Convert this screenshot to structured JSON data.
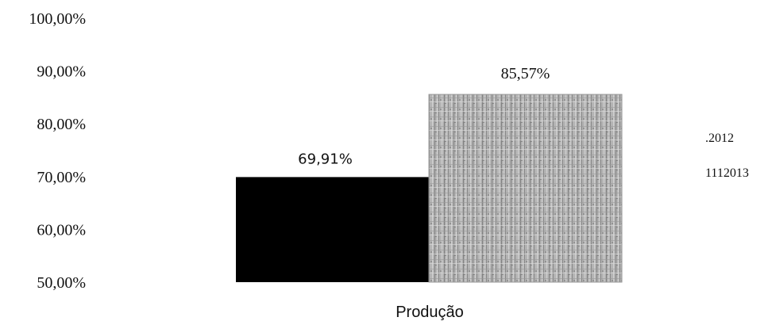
{
  "chart_data": {
    "type": "bar",
    "categories": [
      "Produção"
    ],
    "series": [
      {
        "name": ".2012",
        "values": [
          69.91
        ],
        "color": "#000000"
      },
      {
        "name": "1112013",
        "values": [
          85.57
        ],
        "color": "#a8a8a8"
      }
    ],
    "data_labels": [
      "69,91%",
      "85,57%"
    ],
    "y_ticks": [
      "50,00%",
      "60,00%",
      "70,00%",
      "80,00%",
      "90,00%",
      "100,00%"
    ],
    "ylim": [
      50,
      100
    ],
    "grid": false,
    "legend_position": "right"
  }
}
